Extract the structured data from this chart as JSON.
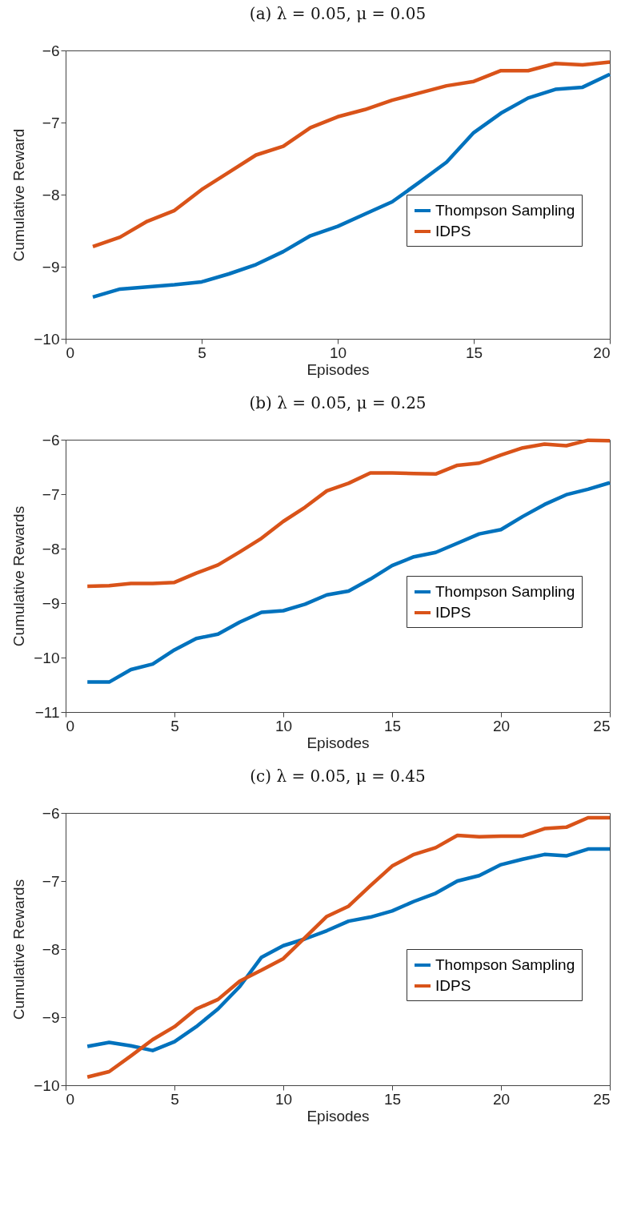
{
  "chart_data": [
    {
      "type": "line",
      "title": "(a) λ = 0.05, μ = 0.05",
      "xlabel": "Episodes",
      "ylabel": "Cumulative Reward",
      "x": [
        1,
        2,
        3,
        4,
        5,
        6,
        7,
        8,
        9,
        10,
        11,
        12,
        13,
        14,
        15,
        16,
        17,
        18,
        19,
        20
      ],
      "xlim": [
        0,
        20
      ],
      "xticks": [
        0,
        5,
        10,
        15,
        20
      ],
      "ylim": [
        -10,
        -6
      ],
      "yticks": [
        -10,
        -9,
        -8,
        -7,
        -6
      ],
      "grid": false,
      "legend": "right",
      "marker": "none",
      "line_style": "solid",
      "series": [
        {
          "name": "Thompson Sampling",
          "color": "#0072bd",
          "values": [
            -9.42,
            -9.31,
            -9.28,
            -9.25,
            -9.21,
            -9.1,
            -8.97,
            -8.79,
            -8.57,
            -8.44,
            -8.27,
            -8.1,
            -7.83,
            -7.55,
            -7.14,
            -6.87,
            -6.66,
            -6.54,
            -6.51,
            -6.33
          ]
        },
        {
          "name": "IDPS",
          "color": "#d95319",
          "values": [
            -8.72,
            -8.59,
            -8.37,
            -8.22,
            -7.93,
            -7.69,
            -7.45,
            -7.33,
            -7.07,
            -6.92,
            -6.82,
            -6.69,
            -6.59,
            -6.49,
            -6.43,
            -6.28,
            -6.28,
            -6.18,
            -6.2,
            -6.16
          ]
        }
      ]
    },
    {
      "type": "line",
      "title": "(b) λ = 0.05, μ = 0.25",
      "xlabel": "Episodes",
      "ylabel": "Cumulative Rewards",
      "x": [
        1,
        2,
        3,
        4,
        5,
        6,
        7,
        8,
        9,
        10,
        11,
        12,
        13,
        14,
        15,
        16,
        17,
        18,
        19,
        20,
        21,
        22,
        23,
        24,
        25
      ],
      "xlim": [
        0,
        25
      ],
      "xticks": [
        0,
        5,
        10,
        15,
        20,
        25
      ],
      "ylim": [
        -11,
        -6
      ],
      "yticks": [
        -11,
        -10,
        -9,
        -8,
        -7,
        -6
      ],
      "grid": false,
      "legend": "right",
      "marker": "none",
      "line_style": "solid",
      "series": [
        {
          "name": "Thompson Sampling",
          "color": "#0072bd",
          "values": [
            -10.45,
            -10.45,
            -10.22,
            -10.12,
            -9.86,
            -9.65,
            -9.57,
            -9.35,
            -9.17,
            -9.14,
            -9.02,
            -8.85,
            -8.78,
            -8.56,
            -8.31,
            -8.15,
            -8.07,
            -7.9,
            -7.73,
            -7.65,
            -7.41,
            -7.19,
            -7.01,
            -6.91,
            -6.79
          ]
        },
        {
          "name": "IDPS",
          "color": "#d95319",
          "values": [
            -8.69,
            -8.68,
            -8.64,
            -8.64,
            -8.62,
            -8.45,
            -8.3,
            -8.06,
            -7.81,
            -7.5,
            -7.24,
            -6.94,
            -6.8,
            -6.61,
            -6.61,
            -6.62,
            -6.63,
            -6.47,
            -6.43,
            -6.28,
            -6.15,
            -6.08,
            -6.11,
            -6.01,
            -6.02
          ]
        }
      ]
    },
    {
      "type": "line",
      "title": "(c) λ = 0.05, μ = 0.45",
      "xlabel": "Episodes",
      "ylabel": "Cumulative Rewards",
      "x": [
        1,
        2,
        3,
        4,
        5,
        6,
        7,
        8,
        9,
        10,
        11,
        12,
        13,
        14,
        15,
        16,
        17,
        18,
        19,
        20,
        21,
        22,
        23,
        24,
        25
      ],
      "xlim": [
        0,
        25
      ],
      "xticks": [
        0,
        5,
        10,
        15,
        20,
        25
      ],
      "ylim": [
        -10,
        -6
      ],
      "yticks": [
        -10,
        -9,
        -8,
        -7,
        -6
      ],
      "grid": false,
      "legend": "right",
      "marker": "none",
      "line_style": "solid",
      "series": [
        {
          "name": "Thompson Sampling",
          "color": "#0072bd",
          "values": [
            -9.43,
            -9.37,
            -9.42,
            -9.49,
            -9.36,
            -9.14,
            -8.88,
            -8.55,
            -8.12,
            -7.95,
            -7.85,
            -7.73,
            -7.59,
            -7.53,
            -7.44,
            -7.3,
            -7.18,
            -7.0,
            -6.92,
            -6.76,
            -6.68,
            -6.61,
            -6.63,
            -6.53,
            -6.53
          ]
        },
        {
          "name": "IDPS",
          "color": "#d95319",
          "values": [
            -9.88,
            -9.8,
            -9.57,
            -9.33,
            -9.14,
            -8.88,
            -8.74,
            -8.47,
            -8.31,
            -8.14,
            -7.83,
            -7.52,
            -7.37,
            -7.07,
            -6.78,
            -6.61,
            -6.51,
            -6.33,
            -6.35,
            -6.34,
            -6.34,
            -6.23,
            -6.21,
            -6.07,
            -6.07
          ]
        }
      ]
    }
  ]
}
